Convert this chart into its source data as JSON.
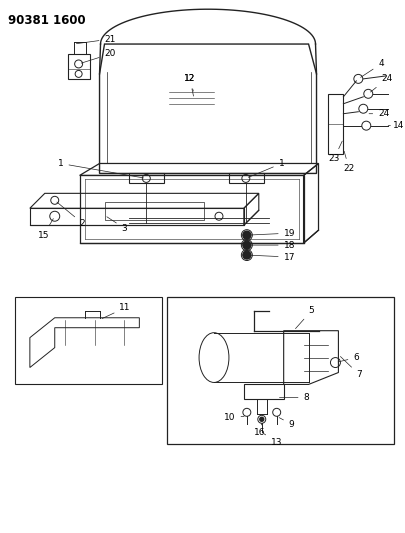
{
  "title": "90381 1600",
  "bg_color": "#ffffff",
  "title_fontsize": 8.5,
  "figsize": [
    4.06,
    5.33
  ],
  "dpi": 100,
  "label_fs": 6.5,
  "line_color": "#222222",
  "lw": 0.7
}
